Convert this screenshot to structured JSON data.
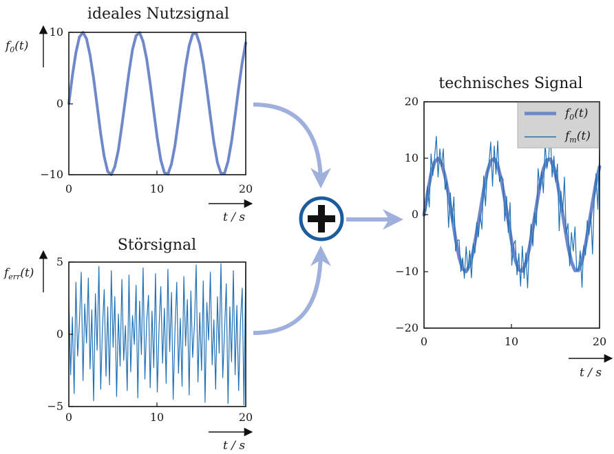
{
  "diagram": {
    "ideal": {
      "title": "ideales Nutzsignal",
      "ylabel": "f0(t)",
      "xlabel": "t / s",
      "xticks": [
        "0",
        "10",
        "20"
      ],
      "yticks": [
        "10",
        "0",
        "−10"
      ]
    },
    "noise": {
      "title": "Störsignal",
      "ylabel": "ferr(t)",
      "xlabel": "t / s",
      "xticks": [
        "0",
        "10",
        "20"
      ],
      "yticks": [
        "5",
        "0",
        "−5"
      ]
    },
    "technical": {
      "title": "technisches Signal",
      "xlabel": "t / s",
      "xticks": [
        "0",
        "10",
        "20"
      ],
      "yticks": [
        "20",
        "10",
        "0",
        "−10",
        "−20"
      ],
      "legend": [
        "f0(t)",
        "fm(t)"
      ]
    },
    "adder_symbol": "+",
    "colors": {
      "ideal_line": "#6f88c9",
      "noise_line": "#1f6fb5",
      "flow_arrow": "#9fb0dc",
      "adder_ring": "#1a5c9e",
      "legend_bg": "#d3d3d3"
    }
  },
  "chart_data": [
    {
      "type": "line",
      "title": "ideales Nutzsignal",
      "xlabel": "t / s",
      "ylabel": "f0(t)",
      "xlim": [
        0,
        20
      ],
      "ylim": [
        -10,
        10
      ],
      "series": [
        {
          "name": "f0(t)",
          "x": [
            0,
            0.4,
            0.8,
            1.2,
            1.6,
            2.0,
            2.4,
            2.8,
            3.2,
            3.6,
            4.0,
            4.4,
            4.8,
            5.2,
            5.6,
            6.0,
            6.4,
            6.8,
            7.2,
            7.6,
            8.0,
            8.4,
            8.8,
            9.2,
            9.6,
            10.0,
            10.4,
            10.8,
            11.2,
            11.6,
            12.0,
            12.4,
            12.8,
            13.2,
            13.6,
            14.0,
            14.4,
            14.8,
            15.2,
            15.6,
            16.0,
            16.4,
            16.8,
            17.2,
            17.6,
            18.0,
            18.4,
            18.8,
            19.2,
            19.6,
            20.0
          ],
          "y": [
            0,
            3.89,
            7.17,
            9.34,
            9.99,
            9.09,
            6.82,
            3.52,
            -0.29,
            -4.25,
            -7.46,
            -9.56,
            -9.99,
            -8.87,
            -6.51,
            -3.05,
            0.58,
            4.4,
            7.58,
            9.53,
            9.96,
            8.71,
            6.25,
            2.78,
            -1.1,
            -4.87,
            -7.93,
            -9.7,
            -9.92,
            -8.49,
            -5.9,
            -2.33,
            1.48,
            5.19,
            8.12,
            9.75,
            9.87,
            8.35,
            5.65,
            2.05,
            -1.75,
            -5.45,
            -8.31,
            -9.81,
            -9.8,
            -8.13,
            -5.32,
            -1.65,
            2.18,
            5.76,
            8.52
          ]
        }
      ]
    },
    {
      "type": "line",
      "title": "Störsignal",
      "xlabel": "t / s",
      "ylabel": "ferr(t)",
      "xlim": [
        0,
        20
      ],
      "ylim": [
        -5,
        5
      ],
      "series": [
        {
          "name": "ferr(t)",
          "x": [
            0,
            0.2,
            0.4,
            0.6,
            0.8,
            1.0,
            1.2,
            1.4,
            1.6,
            1.8,
            2.0,
            2.2,
            2.4,
            2.6,
            2.8,
            3.0,
            3.2,
            3.4,
            3.6,
            3.8,
            4.0,
            4.2,
            4.4,
            4.6,
            4.8,
            5.0,
            5.2,
            5.4,
            5.6,
            5.8,
            6.0,
            6.2,
            6.4,
            6.6,
            6.8,
            7.0,
            7.2,
            7.4,
            7.6,
            7.8,
            8.0,
            8.2,
            8.4,
            8.6,
            8.8,
            9.0,
            9.2,
            9.4,
            9.6,
            9.8,
            10.0,
            10.2,
            10.4,
            10.6,
            10.8,
            11.0,
            11.2,
            11.4,
            11.6,
            11.8,
            12.0,
            12.2,
            12.4,
            12.6,
            12.8,
            13.0,
            13.2,
            13.4,
            13.6,
            13.8,
            14.0,
            14.2,
            14.4,
            14.6,
            14.8,
            15.0,
            15.2,
            15.4,
            15.6,
            15.8,
            16.0,
            16.2,
            16.4,
            16.6,
            16.8,
            17.0,
            17.2,
            17.4,
            17.6,
            17.8,
            18.0,
            18.2,
            18.4,
            18.6,
            18.8,
            19.0,
            19.2,
            19.4,
            19.6,
            19.8,
            20.0
          ],
          "y": [
            2.5,
            -2.8,
            1.2,
            -4.1,
            3.6,
            -1.5,
            0.8,
            4.3,
            -3.2,
            2.1,
            -0.6,
            3.9,
            -2.4,
            1.7,
            -4.6,
            2.8,
            -1.1,
            4.7,
            -3.8,
            0.4,
            3.1,
            -2.9,
            1.9,
            -3.5,
            4.4,
            -0.9,
            2.6,
            -4.3,
            1.4,
            -2.2,
            3.8,
            -1.8,
            0.6,
            -3.9,
            4.1,
            -2.6,
            1.3,
            -0.7,
            3.4,
            -4.4,
            2.3,
            -1.4,
            4.6,
            -3.1,
            0.9,
            2.7,
            -3.7,
            1.6,
            -2.3,
            4.2,
            -4.0,
            0.5,
            3.3,
            -2.0,
            1.8,
            -3.4,
            4.5,
            -1.2,
            2.9,
            -4.5,
            0.3,
            3.6,
            -2.7,
            1.1,
            -3.6,
            4.0,
            -0.8,
            2.4,
            -4.2,
            3.0,
            -1.6,
            0.7,
            4.8,
            -3.3,
            1.5,
            -2.5,
            3.7,
            -4.7,
            2.2,
            -0.4,
            4.3,
            -2.1,
            1.0,
            -3.8,
            2.6,
            -1.3,
            4.9,
            -3.0,
            0.2,
            3.5,
            -4.8,
            1.9,
            -1.9,
            4.4,
            -2.8,
            2.0,
            -3.9,
            0.8,
            3.2,
            -4.9,
            4.6
          ]
        }
      ]
    },
    {
      "type": "line",
      "title": "technisches Signal",
      "xlabel": "t / s",
      "xlim": [
        0,
        20
      ],
      "ylim": [
        -20,
        20
      ],
      "legend_position": "top-right",
      "series": [
        {
          "name": "f0(t)",
          "x": [
            0,
            0.4,
            0.8,
            1.2,
            1.6,
            2.0,
            2.4,
            2.8,
            3.2,
            3.6,
            4.0,
            4.4,
            4.8,
            5.2,
            5.6,
            6.0,
            6.4,
            6.8,
            7.2,
            7.6,
            8.0,
            8.4,
            8.8,
            9.2,
            9.6,
            10.0,
            10.4,
            10.8,
            11.2,
            11.6,
            12.0,
            12.4,
            12.8,
            13.2,
            13.6,
            14.0,
            14.4,
            14.8,
            15.2,
            15.6,
            16.0,
            16.4,
            16.8,
            17.2,
            17.6,
            18.0,
            18.4,
            18.8,
            19.2,
            19.6,
            20.0
          ],
          "y": [
            0,
            3.89,
            7.17,
            9.34,
            9.99,
            9.09,
            6.82,
            3.52,
            -0.29,
            -4.25,
            -7.46,
            -9.56,
            -9.99,
            -8.87,
            -6.51,
            -3.05,
            0.58,
            4.4,
            7.58,
            9.53,
            9.96,
            8.71,
            6.25,
            2.78,
            -1.1,
            -4.87,
            -7.93,
            -9.7,
            -9.92,
            -8.49,
            -5.9,
            -2.33,
            1.48,
            5.19,
            8.12,
            9.75,
            9.87,
            8.35,
            5.65,
            2.05,
            -1.75,
            -5.45,
            -8.31,
            -9.81,
            -9.8,
            -8.13,
            -5.32,
            -1.65,
            2.18,
            5.76,
            8.52
          ]
        },
        {
          "name": "fm(t)",
          "x": [
            0,
            0.2,
            0.4,
            0.6,
            0.8,
            1.0,
            1.2,
            1.4,
            1.6,
            1.8,
            2.0,
            2.2,
            2.4,
            2.6,
            2.8,
            3.0,
            3.2,
            3.4,
            3.6,
            3.8,
            4.0,
            4.2,
            4.4,
            4.6,
            4.8,
            5.0,
            5.2,
            5.4,
            5.6,
            5.8,
            6.0,
            6.2,
            6.4,
            6.6,
            6.8,
            7.0,
            7.2,
            7.4,
            7.6,
            7.8,
            8.0,
            8.2,
            8.4,
            8.6,
            8.8,
            9.0,
            9.2,
            9.4,
            9.6,
            9.8,
            10.0,
            10.2,
            10.4,
            10.6,
            10.8,
            11.0,
            11.2,
            11.4,
            11.6,
            11.8,
            12.0,
            12.2,
            12.4,
            12.6,
            12.8,
            13.0,
            13.2,
            13.4,
            13.6,
            13.8,
            14.0,
            14.2,
            14.4,
            14.6,
            14.8,
            15.0,
            15.2,
            15.4,
            15.6,
            15.8,
            16.0,
            16.2,
            16.4,
            16.6,
            16.8,
            17.0,
            17.2,
            17.4,
            17.6,
            17.8,
            18.0,
            18.2,
            18.4,
            18.6,
            18.8,
            19.0,
            19.2,
            19.4,
            19.6,
            19.8,
            20.0
          ],
          "y": [
            1.3,
            0.6,
            5.1,
            1.4,
            10.8,
            7.0,
            10.1,
            13.9,
            6.7,
            11.7,
            8.5,
            11.7,
            4.5,
            6.0,
            -2.2,
            3.9,
            -1.4,
            3.2,
            -6.4,
            -4.5,
            -4.4,
            -10.0,
            -7.6,
            -11.2,
            -5.6,
            -9.8,
            -6.3,
            -11.1,
            -5.1,
            -6.7,
            -1.3,
            -3.9,
            0.0,
            -2.5,
            6.9,
            1.6,
            7.3,
            9.2,
            12.9,
            5.1,
            12.2,
            7.2,
            13.1,
            5.9,
            6.9,
            6.3,
            -1.1,
            3.3,
            -3.1,
            2.2,
            -8.9,
            -5.3,
            -4.5,
            -10.6,
            -6.8,
            -12.6,
            -5.5,
            -11.2,
            -6.7,
            -12.9,
            -5.6,
            -1.6,
            -5.5,
            0.4,
            -1.9,
            8.2,
            4.5,
            7.7,
            3.9,
            12.7,
            8.2,
            10.1,
            14.6,
            6.7,
            10.4,
            5.8,
            9.0,
            -2.8,
            4.2,
            0.5,
            6.7,
            -3.3,
            -1.5,
            -9.0,
            -3.1,
            -6.4,
            -2.1,
            -9.8,
            -9.6,
            -6.3,
            -12.8,
            -5.4,
            -7.1,
            -1.0,
            -3.5,
            0.3,
            -6.9,
            3.3,
            7.3,
            1.0,
            11.1
          ]
        }
      ]
    }
  ]
}
